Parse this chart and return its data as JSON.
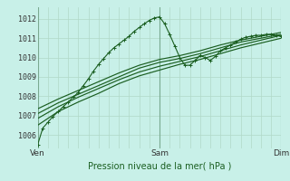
{
  "bg_color": "#c8f0e8",
  "grid_color": "#b0d8c8",
  "line_color": "#1a5e20",
  "title": "Pression niveau de la mer( hPa )",
  "ylabel_ticks": [
    1006,
    1007,
    1008,
    1009,
    1010,
    1011,
    1012
  ],
  "ylim": [
    1005.3,
    1012.6
  ],
  "xlim": [
    0,
    96
  ],
  "xtick_positions": [
    0,
    48,
    96
  ],
  "xtick_labels": [
    "Ven",
    "Sam",
    "Dim"
  ],
  "vlines": [
    0,
    48,
    96
  ],
  "series": [
    [
      0,
      1005.5,
      2,
      1006.35,
      4,
      1006.65,
      6,
      1006.95,
      8,
      1007.2,
      10,
      1007.45,
      12,
      1007.7,
      14,
      1007.95,
      16,
      1008.2,
      18,
      1008.55,
      20,
      1008.9,
      22,
      1009.3,
      24,
      1009.65,
      26,
      1009.95,
      28,
      1010.25,
      30,
      1010.5,
      32,
      1010.7,
      34,
      1010.9,
      36,
      1011.1,
      38,
      1011.35,
      40,
      1011.55,
      42,
      1011.75,
      44,
      1011.92,
      46,
      1012.05,
      48,
      1012.1,
      50,
      1011.75,
      52,
      1011.2,
      54,
      1010.6,
      56,
      1010.0,
      58,
      1009.6,
      60,
      1009.6,
      62,
      1009.85,
      64,
      1010.1,
      66,
      1010.0,
      68,
      1009.85,
      70,
      1010.05,
      72,
      1010.35,
      74,
      1010.5,
      76,
      1010.65,
      78,
      1010.8,
      80,
      1010.95,
      82,
      1011.05,
      84,
      1011.1,
      86,
      1011.15,
      88,
      1011.15,
      90,
      1011.2,
      92,
      1011.2,
      94,
      1011.15,
      96,
      1011.1
    ],
    [
      0,
      1006.5,
      8,
      1007.2,
      16,
      1007.7,
      24,
      1008.15,
      32,
      1008.65,
      40,
      1009.05,
      48,
      1009.35,
      56,
      1009.65,
      64,
      1009.9,
      72,
      1010.2,
      80,
      1010.5,
      88,
      1010.75,
      96,
      1011.0
    ],
    [
      0,
      1006.85,
      8,
      1007.45,
      16,
      1007.95,
      24,
      1008.4,
      32,
      1008.85,
      40,
      1009.25,
      48,
      1009.55,
      56,
      1009.8,
      64,
      1010.05,
      72,
      1010.35,
      80,
      1010.65,
      88,
      1010.9,
      96,
      1011.15
    ],
    [
      0,
      1007.1,
      8,
      1007.65,
      16,
      1008.1,
      24,
      1008.55,
      32,
      1009.0,
      40,
      1009.45,
      48,
      1009.75,
      56,
      1009.95,
      64,
      1010.2,
      72,
      1010.5,
      80,
      1010.8,
      88,
      1011.0,
      96,
      1011.2
    ],
    [
      0,
      1007.35,
      8,
      1007.85,
      16,
      1008.3,
      24,
      1008.75,
      32,
      1009.2,
      40,
      1009.6,
      48,
      1009.9,
      56,
      1010.1,
      64,
      1010.35,
      72,
      1010.65,
      80,
      1010.9,
      88,
      1011.1,
      96,
      1011.3
    ]
  ]
}
